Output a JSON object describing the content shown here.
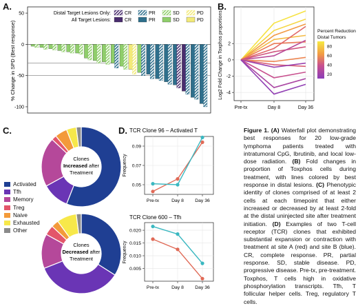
{
  "panel_labels": {
    "a": "A.",
    "b": "B.",
    "c": "C.",
    "d": "D."
  },
  "panel_a": {
    "ylabel": "% Change in SPD (Best response)",
    "yticks": [
      "50",
      "0",
      "-50",
      "-100"
    ],
    "legend_row1_label": "Distal Target Lesions Only:",
    "legend_row2_label": "All Target Lesions:",
    "legend_items": [
      "CR",
      "PR",
      "SD",
      "PD"
    ],
    "colors": {
      "CR": "#4a2d6e",
      "PR": "#2e6f8c",
      "SD": "#8fce6a",
      "PD": "#f2ea78"
    },
    "chart_data": {
      "type": "bar",
      "ylim": [
        -110,
        60
      ],
      "series": [
        {
          "name": "All Target Lesions",
          "response": [
            "SD",
            "SD",
            "SD",
            "SD",
            "SD",
            "SD",
            "SD",
            "SD",
            "SD",
            "SD",
            "SD",
            "PD",
            "SD",
            "PR",
            "PR",
            "PR",
            "PR",
            "CR",
            "PR",
            "PR"
          ],
          "values": [
            -3,
            -5,
            -7,
            -10,
            -12,
            -14,
            -22,
            -26,
            -28,
            -30,
            -35,
            -40,
            -45,
            -48,
            -55,
            -60,
            -65,
            -75,
            -85,
            -95
          ]
        },
        {
          "name": "Distal Target Lesions Only",
          "response": [
            "SD",
            "SD",
            "SD",
            "SD",
            "SD",
            "SD",
            "SD",
            "SD",
            "SD",
            "PR",
            "SD",
            "PD",
            "PR",
            "PR",
            "PR",
            "PR",
            "CR",
            "PR",
            "PR",
            "PR"
          ],
          "values": [
            -5,
            -8,
            -9,
            -12,
            -14,
            -16,
            -25,
            -30,
            -32,
            -38,
            -40,
            -48,
            -50,
            -55,
            -58,
            -64,
            -70,
            -80,
            -88,
            -100
          ]
        }
      ]
    }
  },
  "panel_b": {
    "ylabel": "Log2 Fold Change in Toxphos proportions",
    "yticks": [
      "2",
      "0",
      "-2",
      "-4"
    ],
    "xticks": [
      "Pre-tx",
      "Day 8",
      "Day 36"
    ],
    "colorbar_title": "Percent Reduction\nDistal Tumors",
    "colorbar_title_line1": "Percent Reduction",
    "colorbar_title_line2": "Distal Tumors",
    "colorbar_ticks": [
      "80",
      "60",
      "40",
      "20"
    ],
    "chart_data": {
      "type": "line",
      "x": [
        "Pre-tx",
        "Day 8",
        "Day 36"
      ],
      "ylim": [
        -5,
        6.5
      ],
      "series": [
        {
          "values": [
            0,
            4.5,
            6.0
          ],
          "reduction": 88
        },
        {
          "values": [
            0,
            3.6,
            5.0
          ],
          "reduction": 85
        },
        {
          "values": [
            0,
            3.0,
            4.4
          ],
          "reduction": 70
        },
        {
          "values": [
            0,
            2.5,
            3.0
          ],
          "reduction": 78
        },
        {
          "values": [
            0,
            2.0,
            2.2
          ],
          "reduction": 55
        },
        {
          "values": [
            0,
            1.4,
            4.1
          ],
          "reduction": 45
        },
        {
          "values": [
            0,
            1.0,
            1.6
          ],
          "reduction": 35
        },
        {
          "values": [
            0,
            0.5,
            2.4
          ],
          "reduction": 25
        },
        {
          "values": [
            0,
            -0.2,
            0.3
          ],
          "reduction": 60
        },
        {
          "values": [
            0,
            -0.6,
            -0.8
          ],
          "reduction": 40
        },
        {
          "values": [
            0,
            -0.9,
            -0.4
          ],
          "reduction": 15
        },
        {
          "values": [
            0,
            -2.2,
            -1.5
          ],
          "reduction": 30
        },
        {
          "values": [
            0,
            -3.4,
            -2.3
          ],
          "reduction": 20
        },
        {
          "values": [
            0,
            -4.2,
            -3.0
          ],
          "reduction": 12
        }
      ]
    }
  },
  "panel_c": {
    "donut1_text1": "Clones",
    "donut1_text2": "Increased",
    "donut1_text2b": " after",
    "donut1_text3": "Treatment",
    "donut2_text1": "Clones",
    "donut2_text2": "Decreased",
    "donut2_text2b": " after",
    "donut2_text3": "Treatment",
    "legend": [
      {
        "label": "Activated",
        "color": "#1f3f93"
      },
      {
        "label": "Tfh",
        "color": "#6a35b5"
      },
      {
        "label": "Memory",
        "color": "#b5489a"
      },
      {
        "label": "Treg",
        "color": "#e3566a"
      },
      {
        "label": "Naive",
        "color": "#f39a3a"
      },
      {
        "label": "Exhausted",
        "color": "#f7e84a"
      },
      {
        "label": "Other",
        "color": "#8a8a8a"
      }
    ],
    "chart_data": [
      {
        "type": "pie",
        "title": "Clones Increased after Treatment",
        "categories": [
          "Activated",
          "Tfh",
          "Memory",
          "Treg",
          "Naive",
          "Exhausted",
          "Other"
        ],
        "values": [
          56,
          11,
          20,
          2,
          5,
          4,
          2
        ]
      },
      {
        "type": "pie",
        "title": "Clones Decreased after Treatment",
        "categories": [
          "Activated",
          "Tfh",
          "Memory",
          "Treg",
          "Naive",
          "Exhausted",
          "Other"
        ],
        "values": [
          34,
          35,
          14,
          4,
          3,
          8,
          2
        ]
      }
    ]
  },
  "panel_d": {
    "plot1_title": "TCR Clone 96 – Activated T",
    "plot2_title": "TCR Clone 600 – Tfh",
    "ylabel": "Frequency",
    "xticks": [
      "Pre-tx",
      "Day 8",
      "Day 36"
    ],
    "plot1_yticks": [
      "0.09",
      "0.07",
      "0.05"
    ],
    "plot2_yticks": [
      "0.020",
      "0.015",
      "0.010",
      "0.005"
    ],
    "site_colors": {
      "A": "#e06a57",
      "B": "#3bb8c1"
    },
    "chart_data": [
      {
        "type": "line",
        "title": "TCR Clone 96 – Activated T",
        "x": [
          "Pre-tx",
          "Day 8",
          "Day 36"
        ],
        "ylim": [
          0.04,
          0.1
        ],
        "series": [
          {
            "name": "A",
            "values": [
              0.043,
              0.056,
              0.094
            ]
          },
          {
            "name": "B",
            "values": [
              0.051,
              0.05,
              0.099
            ]
          }
        ]
      },
      {
        "type": "line",
        "title": "TCR Clone 600 – Tfh",
        "x": [
          "Pre-tx",
          "Day 8",
          "Day 36"
        ],
        "ylim": [
          0.0,
          0.023
        ],
        "series": [
          {
            "name": "A",
            "values": [
              0.0165,
              0.0125,
              0.001
            ]
          },
          {
            "name": "B",
            "values": [
              0.0215,
              0.0185,
              0.007
            ]
          }
        ]
      }
    ]
  },
  "caption": {
    "fig_label": "Figure 1.",
    "a_label": "(A)",
    "a_text": " Waterfall plot demonstrating best responses for 20 low-grade lymphoma patients treated with intratumoral CpG, Ibrutinib, and local low-dose radiation. ",
    "b_label": "(B)",
    "b_text": " Fold changes in proportion of Toxphos cells during treatment, with lines colored by best response in distal lesions. ",
    "c_label": "(C)",
    "c_text": " Phenotypic identity of clones comprised of at least 2 cells at each timepoint that either increased or decreased by at least 2-fold at the distal uninjected site after treatment initiation. ",
    "d_label": "(D)",
    "d_text": " Examples of two T-cell receptor (TCR) clones that exhibited substantial expansion or contraction with treatment at site A (red) and site B (blue). CR, complete response. PR, partial response. SD, stable disease. PD, progressive disease. Pre-tx, pre-treatment. Toxphos, T cells high in oxidative phosphorylation transcripts. Tfh, T follicular helper cells. Treg, regulatory T cells."
  }
}
